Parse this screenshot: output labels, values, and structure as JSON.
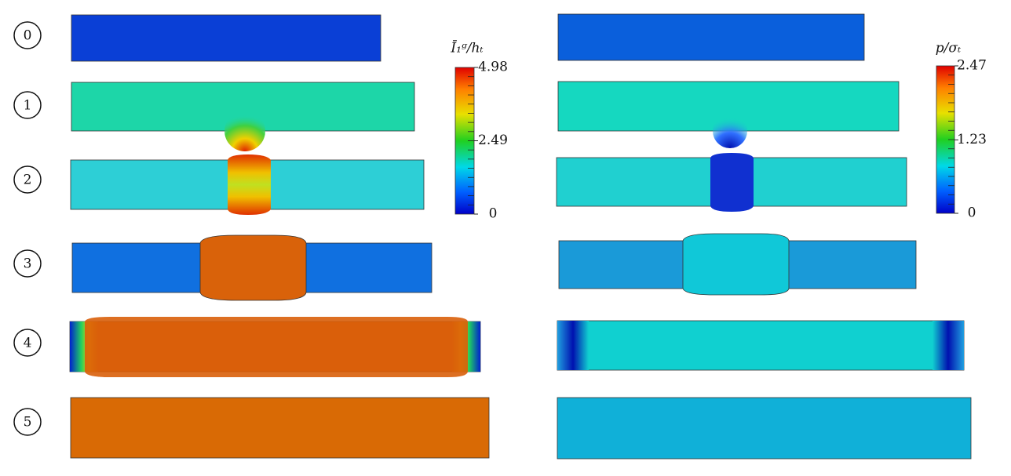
{
  "steps": [
    "0",
    "1",
    "2",
    "3",
    "4",
    "5"
  ],
  "colorbars": [
    {
      "title": "Ī₁ᵍ/hₜ",
      "ticks": [
        4.98,
        2.49,
        0
      ]
    },
    {
      "title": "p/σₜ",
      "ticks": [
        2.47,
        1.23,
        0
      ]
    }
  ]
}
